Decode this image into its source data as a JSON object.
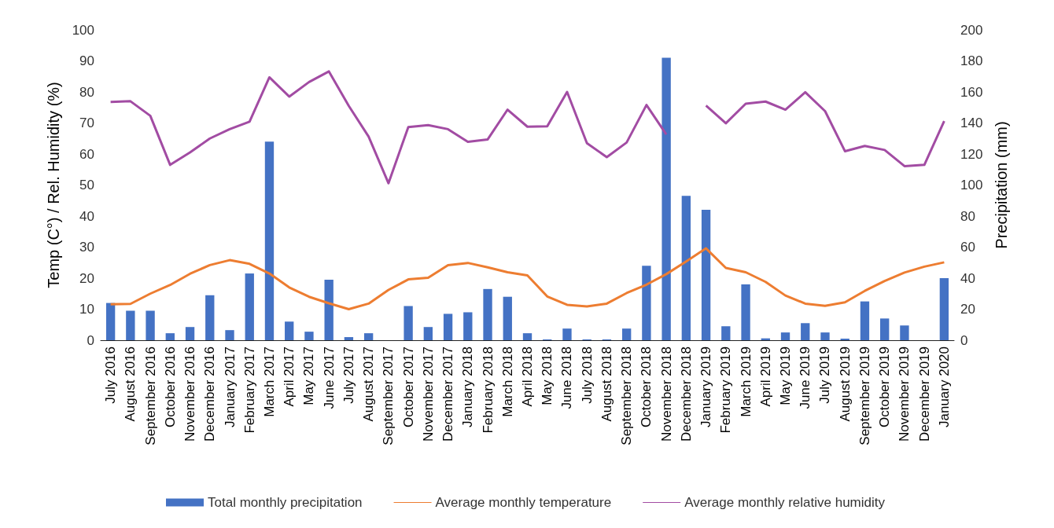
{
  "chart_data": {
    "type": "bar",
    "ylabel": "Temp (C°) / Rel. Humidity (%)",
    "y2label": "Precipitation (mm)",
    "categories": [
      "July 2016",
      "August 2016",
      "September 2016",
      "October 2016",
      "November 2016",
      "December 2016",
      "January 2017",
      "February 2017",
      "March 2017",
      "April 2017",
      "May 2017",
      "June 2017",
      "July 2017",
      "August 2017",
      "September 2017",
      "October 2017",
      "November 2017",
      "December 2017",
      "January 2018",
      "February 2018",
      "March 2018",
      "April 2018",
      "May 2018",
      "June 2018",
      "July 2018",
      "August 2018",
      "September 2018",
      "October 2018",
      "November 2018",
      "December 2018",
      "January 2019",
      "February 2019",
      "March 2019",
      "April 2019",
      "May 2019",
      "June 2019",
      "July 2019",
      "August 2019",
      "September 2019",
      "October 2019",
      "November 2019",
      "December 2019",
      "January 2020"
    ],
    "series": [
      {
        "name": "Total monthly precipitation",
        "axis": "y2",
        "color": "#4472c4",
        "values": [
          24,
          19,
          19,
          4.5,
          8.5,
          29,
          6.5,
          43,
          128,
          12,
          5.5,
          39,
          2,
          4.5,
          0,
          22,
          8.5,
          17,
          18,
          33,
          28,
          4.5,
          0.5,
          7.5,
          0.5,
          0.5,
          7.5,
          48,
          182,
          93,
          84,
          9,
          36,
          1.2,
          5,
          11,
          5,
          1,
          25,
          14,
          9.5,
          0,
          40
        ]
      },
      {
        "name": "Average monthly temperature",
        "type": "line",
        "color": "#ed7d31",
        "values": [
          11.6,
          11.7,
          15,
          17.8,
          21.4,
          24.2,
          25.8,
          24.6,
          21.5,
          17,
          14,
          11.9,
          10,
          11.8,
          16.2,
          19.6,
          20.1,
          24.2,
          24.9,
          23.5,
          21.9,
          20.9,
          14.1,
          11.4,
          10.9,
          11.8,
          15.2,
          17.9,
          21.3,
          25.4,
          29.6,
          23.3,
          21.9,
          18.8,
          14.4,
          11.8,
          11.1,
          12.2,
          15.9,
          19.1,
          21.8,
          23.7,
          25.1
        ]
      },
      {
        "name": "Average monthly relative humidity",
        "type": "line",
        "color": "#a24ca3",
        "values": [
          76.8,
          77,
          72.3,
          56.5,
          60.5,
          65,
          68,
          70.4,
          84.7,
          78.5,
          83.2,
          86.6,
          75.5,
          65.6,
          50.6,
          68.7,
          69.3,
          68,
          63.9,
          64.7,
          74.3,
          68.8,
          68.9,
          80,
          63.5,
          59,
          63.7,
          75.8,
          66.3,
          null,
          75.6,
          69.9,
          76.2,
          76.9,
          74.3,
          79.9,
          73.8,
          60.9,
          62.6,
          61.3,
          56.1,
          56.5,
          70.6
        ]
      }
    ],
    "ylim": [
      0,
      100
    ],
    "yticks": [
      0,
      10,
      20,
      30,
      40,
      50,
      60,
      70,
      80,
      90,
      100
    ],
    "y2lim": [
      0,
      200
    ],
    "y2ticks": [
      0,
      20,
      40,
      60,
      80,
      100,
      120,
      140,
      160,
      180,
      200
    ],
    "grid": false,
    "legend": "bottom",
    "marker": "none",
    "line_style": "solid"
  }
}
